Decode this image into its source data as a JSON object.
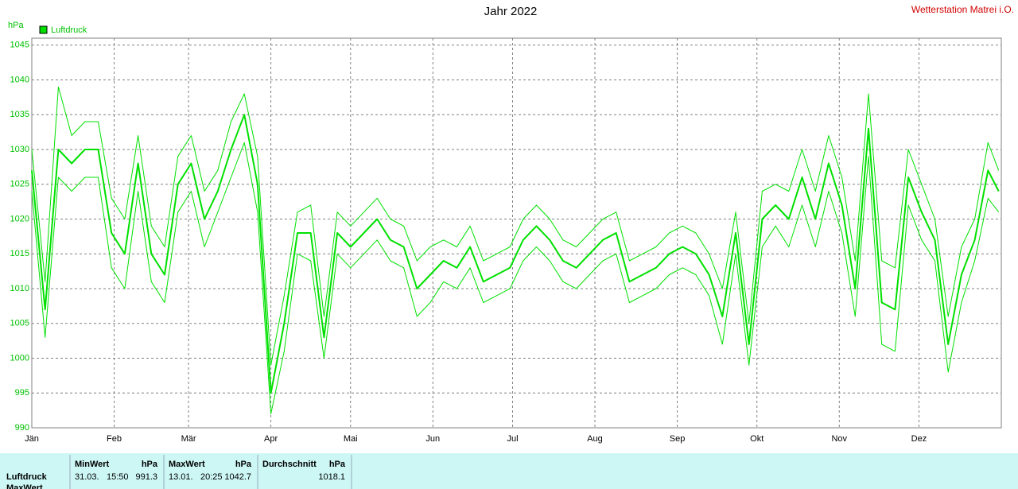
{
  "chart_data": {
    "type": "line",
    "title": "Jahr 2022",
    "station": "Wetterstation Matrei i.O.",
    "ylabel": "hPa",
    "x": [
      1,
      6,
      11,
      16,
      21,
      26,
      31,
      36,
      41,
      46,
      51,
      56,
      61,
      66,
      71,
      76,
      81,
      86,
      91,
      96,
      101,
      106,
      111,
      116,
      121,
      126,
      131,
      136,
      141,
      146,
      151,
      156,
      161,
      166,
      171,
      176,
      181,
      186,
      191,
      196,
      201,
      206,
      211,
      216,
      221,
      226,
      231,
      236,
      241,
      246,
      251,
      256,
      261,
      266,
      271,
      276,
      281,
      286,
      291,
      296,
      301,
      306,
      311,
      316,
      321,
      326,
      331,
      336,
      341,
      346,
      351,
      356,
      361,
      365
    ],
    "xlim": [
      1,
      366
    ],
    "xticks": [
      {
        "value": 1,
        "label": "Jän"
      },
      {
        "value": 32,
        "label": "Feb"
      },
      {
        "value": 60,
        "label": "Mär"
      },
      {
        "value": 91,
        "label": "Apr"
      },
      {
        "value": 121,
        "label": "Mai"
      },
      {
        "value": 152,
        "label": "Jun"
      },
      {
        "value": 182,
        "label": "Jul"
      },
      {
        "value": 213,
        "label": "Aug"
      },
      {
        "value": 244,
        "label": "Sep"
      },
      {
        "value": 274,
        "label": "Okt"
      },
      {
        "value": 305,
        "label": "Nov"
      },
      {
        "value": 335,
        "label": "Dez"
      }
    ],
    "ylim": [
      990,
      1046
    ],
    "yticks": [
      990,
      995,
      1000,
      1005,
      1010,
      1015,
      1020,
      1025,
      1030,
      1035,
      1040,
      1045
    ],
    "grid": true,
    "legend": "top-left",
    "series": [
      {
        "name": "Luftdruck",
        "color": "#00e000",
        "values": [
          1027,
          1007,
          1030,
          1028,
          1030,
          1030,
          1018,
          1015,
          1028,
          1015,
          1012,
          1025,
          1028,
          1020,
          1024,
          1030,
          1035,
          1025,
          995,
          1005,
          1018,
          1018,
          1003,
          1018,
          1016,
          1018,
          1020,
          1017,
          1016,
          1010,
          1012,
          1014,
          1013,
          1016,
          1011,
          1012,
          1013,
          1017,
          1019,
          1017,
          1014,
          1013,
          1015,
          1017,
          1018,
          1011,
          1012,
          1013,
          1015,
          1016,
          1015,
          1012,
          1006,
          1018,
          1002,
          1020,
          1022,
          1020,
          1026,
          1020,
          1028,
          1022,
          1010,
          1033,
          1008,
          1007,
          1026,
          1021,
          1017,
          1002,
          1012,
          1017,
          1027,
          1024
        ]
      },
      {
        "color": "#00e000",
        "values": [
          1024,
          1003,
          1026,
          1024,
          1026,
          1026,
          1013,
          1010,
          1024,
          1011,
          1008,
          1021,
          1024,
          1016,
          1021,
          1026,
          1031,
          1021,
          992,
          1001,
          1015,
          1014,
          1000,
          1015,
          1013,
          1015,
          1017,
          1014,
          1013,
          1006,
          1008,
          1011,
          1010,
          1013,
          1008,
          1009,
          1010,
          1014,
          1016,
          1014,
          1011,
          1010,
          1012,
          1014,
          1015,
          1008,
          1009,
          1010,
          1012,
          1013,
          1012,
          1009,
          1002,
          1015,
          999,
          1016,
          1019,
          1016,
          1022,
          1016,
          1024,
          1018,
          1006,
          1029,
          1002,
          1001,
          1022,
          1017,
          1014,
          998,
          1008,
          1014,
          1023,
          1021
        ]
      },
      {
        "color": "#00e000",
        "values": [
          1030,
          1011,
          1039,
          1032,
          1034,
          1034,
          1023,
          1020,
          1032,
          1019,
          1016,
          1029,
          1032,
          1024,
          1027,
          1034,
          1038,
          1029,
          999,
          1009,
          1021,
          1022,
          1006,
          1021,
          1019,
          1021,
          1023,
          1020,
          1019,
          1014,
          1016,
          1017,
          1016,
          1019,
          1014,
          1015,
          1016,
          1020,
          1022,
          1020,
          1017,
          1016,
          1018,
          1020,
          1021,
          1014,
          1015,
          1016,
          1018,
          1019,
          1018,
          1015,
          1010,
          1021,
          1005,
          1024,
          1025,
          1024,
          1030,
          1024,
          1032,
          1026,
          1014,
          1038,
          1014,
          1013,
          1030,
          1025,
          1020,
          1006,
          1016,
          1020,
          1031,
          1027
        ]
      }
    ]
  },
  "stats": {
    "row_labels": [
      "Luftdruck",
      "MaxWert"
    ],
    "columns": [
      {
        "header": "MinWert",
        "unit": "hPa",
        "date": "31.03.",
        "time": "15:50",
        "value": 991.3
      },
      {
        "header": "MaxWert",
        "unit": "hPa",
        "date": "13.01.",
        "time": "20:25",
        "value": 1042.7
      },
      {
        "header": "Durchschnitt",
        "unit": "hPa",
        "value": 1018.1
      }
    ]
  }
}
